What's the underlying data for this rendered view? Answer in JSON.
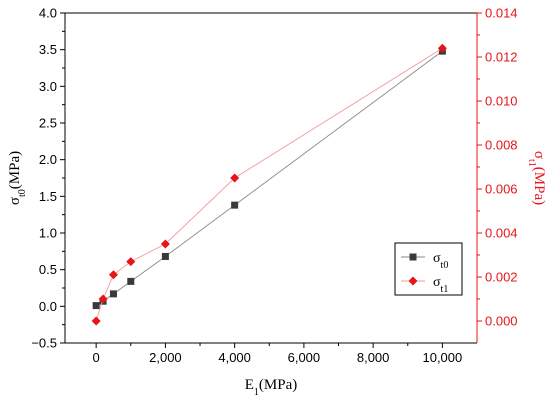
{
  "chart_data": {
    "type": "line",
    "x": [
      0,
      200,
      500,
      1000,
      2000,
      4000,
      10000
    ],
    "xlabel": {
      "main": "E",
      "sub": "1",
      "tail": "(MPa)"
    },
    "xlim": [
      -900,
      11000
    ],
    "xticks": [
      0,
      2000,
      4000,
      6000,
      8000,
      10000
    ],
    "xtick_labels": [
      "0",
      "2,000",
      "4,000",
      "6,000",
      "8,000",
      "10,000"
    ],
    "y_left": {
      "label": {
        "main": "σ",
        "sub": "t0",
        "tail": "(MPa)"
      },
      "lim": [
        -0.5,
        4.0
      ],
      "ticks": [
        -0.5,
        0.0,
        0.5,
        1.0,
        1.5,
        2.0,
        2.5,
        3.0,
        3.5,
        4.0
      ],
      "tick_labels": [
        "−0.5",
        "0.0",
        "0.5",
        "1.0",
        "1.5",
        "2.0",
        "2.5",
        "3.0",
        "3.5",
        "4.0"
      ],
      "color": "#000000"
    },
    "y_right": {
      "label": {
        "main": "σ",
        "sub": "t1",
        "tail": "(MPa)"
      },
      "lim": [
        -0.001,
        0.014
      ],
      "ticks": [
        0.0,
        0.002,
        0.004,
        0.006,
        0.008,
        0.01,
        0.012,
        0.014
      ],
      "tick_labels": [
        "0.000",
        "0.002",
        "0.004",
        "0.006",
        "0.008",
        "0.010",
        "0.012",
        "0.014"
      ],
      "color": "#e8141a"
    },
    "series": [
      {
        "name": {
          "main": "σ",
          "sub": "t0"
        },
        "axis": "left",
        "marker": "square",
        "color": "#3a3a3a",
        "line_color": "#8a8a8a",
        "x": [
          0,
          200,
          500,
          1000,
          2000,
          4000,
          10000
        ],
        "values": [
          0.01,
          0.07,
          0.17,
          0.34,
          0.68,
          1.38,
          3.48
        ]
      },
      {
        "name": {
          "main": "σ",
          "sub": "t1"
        },
        "axis": "right",
        "marker": "diamond",
        "color": "#e8141a",
        "line_color": "#f59a9a",
        "x": [
          0,
          200,
          500,
          1000,
          2000,
          4000,
          10000
        ],
        "values": [
          0.0,
          0.001,
          0.0021,
          0.0027,
          0.0035,
          0.0065,
          0.0124
        ]
      }
    ],
    "legend_position": "lower-right",
    "grid": false
  }
}
